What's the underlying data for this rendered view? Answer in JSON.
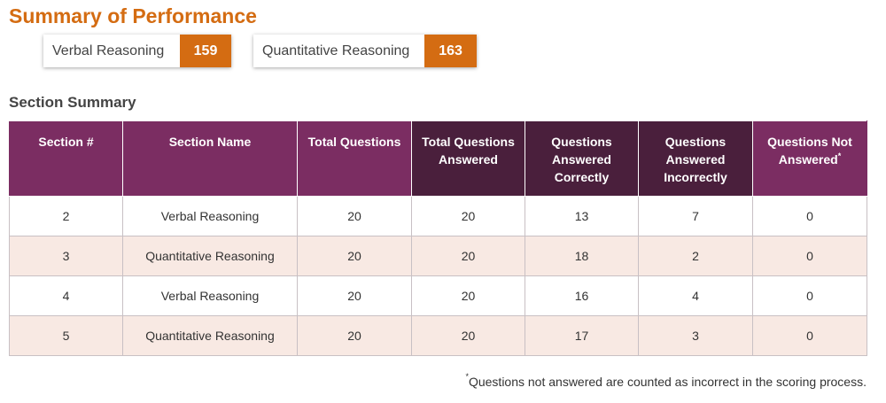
{
  "page_title": "Summary of Performance",
  "scores": [
    {
      "label": "Verbal Reasoning",
      "value": "159"
    },
    {
      "label": "Quantitative Reasoning",
      "value": "163"
    }
  ],
  "section_heading": "Section Summary",
  "table": {
    "headers": [
      {
        "text": "Section #",
        "dark": false,
        "footnote_mark": ""
      },
      {
        "text": "Section Name",
        "dark": false,
        "footnote_mark": ""
      },
      {
        "text": "Total Questions",
        "dark": false,
        "footnote_mark": ""
      },
      {
        "text": "Total Questions Answered",
        "dark": true,
        "footnote_mark": ""
      },
      {
        "text": "Questions Answered Correctly",
        "dark": true,
        "footnote_mark": ""
      },
      {
        "text": "Questions Answered Incorrectly",
        "dark": true,
        "footnote_mark": ""
      },
      {
        "text": "Questions Not Answered",
        "dark": false,
        "footnote_mark": "*"
      }
    ],
    "rows": [
      [
        "2",
        "Verbal Reasoning",
        "20",
        "20",
        "13",
        "7",
        "0"
      ],
      [
        "3",
        "Quantitative Reasoning",
        "20",
        "20",
        "18",
        "2",
        "0"
      ],
      [
        "4",
        "Verbal Reasoning",
        "20",
        "20",
        "16",
        "4",
        "0"
      ],
      [
        "5",
        "Quantitative Reasoning",
        "20",
        "20",
        "17",
        "3",
        "0"
      ]
    ]
  },
  "footnote": {
    "mark": "*",
    "text": "Questions not answered are counted as incorrect in the scoring process."
  },
  "colors": {
    "accent_orange": "#d46c12",
    "header_purple": "#7b2d62",
    "header_dark_purple": "#4a1f3c",
    "alt_row": "#f8e9e3"
  }
}
